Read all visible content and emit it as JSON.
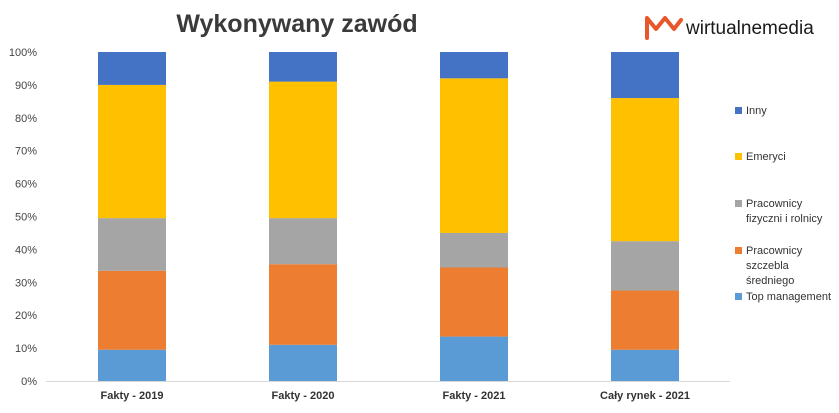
{
  "brand": {
    "name": "wirtualnemedia",
    "logo_color": "#e8572c"
  },
  "chart_data": {
    "type": "bar",
    "stacked": true,
    "percent": true,
    "title": "Wykonywany zawód",
    "xlabel": "",
    "ylabel": "",
    "ylim": [
      0,
      100
    ],
    "y_ticks": [
      "0%",
      "10%",
      "20%",
      "30%",
      "40%",
      "50%",
      "60%",
      "70%",
      "80%",
      "90%",
      "100%"
    ],
    "grid": false,
    "legend_position": "right",
    "categories": [
      "Fakty - 2019",
      "Fakty - 2020",
      "Fakty - 2021",
      "Cały rynek - 2021"
    ],
    "series": [
      {
        "name": "Top management",
        "color": "#5b9bd5",
        "values": [
          9.5,
          11,
          13.5,
          9.5
        ]
      },
      {
        "name": "Pracownicy szczebla średniego",
        "color": "#ed7d31",
        "values": [
          24,
          24.5,
          21,
          18
        ]
      },
      {
        "name": "Pracownicy fizyczni i rolnicy",
        "color": "#a5a5a5",
        "values": [
          16,
          14,
          10.5,
          15
        ]
      },
      {
        "name": "Emeryci",
        "color": "#ffc000",
        "values": [
          40.5,
          41.5,
          47,
          43.5
        ]
      },
      {
        "name": "Inny",
        "color": "#4472c4",
        "values": [
          10,
          9,
          8,
          14
        ]
      }
    ],
    "legend": [
      {
        "lines": [
          "Inny"
        ],
        "color": "#4472c4"
      },
      {
        "lines": [
          "Emeryci"
        ],
        "color": "#ffc000"
      },
      {
        "lines": [
          "Pracownicy",
          "fizyczni i rolnicy"
        ],
        "color": "#a5a5a5"
      },
      {
        "lines": [
          "Pracownicy",
          "szczebla",
          "średniego"
        ],
        "color": "#ed7d31"
      },
      {
        "lines": [
          "Top management"
        ],
        "color": "#5b9bd5"
      }
    ]
  }
}
